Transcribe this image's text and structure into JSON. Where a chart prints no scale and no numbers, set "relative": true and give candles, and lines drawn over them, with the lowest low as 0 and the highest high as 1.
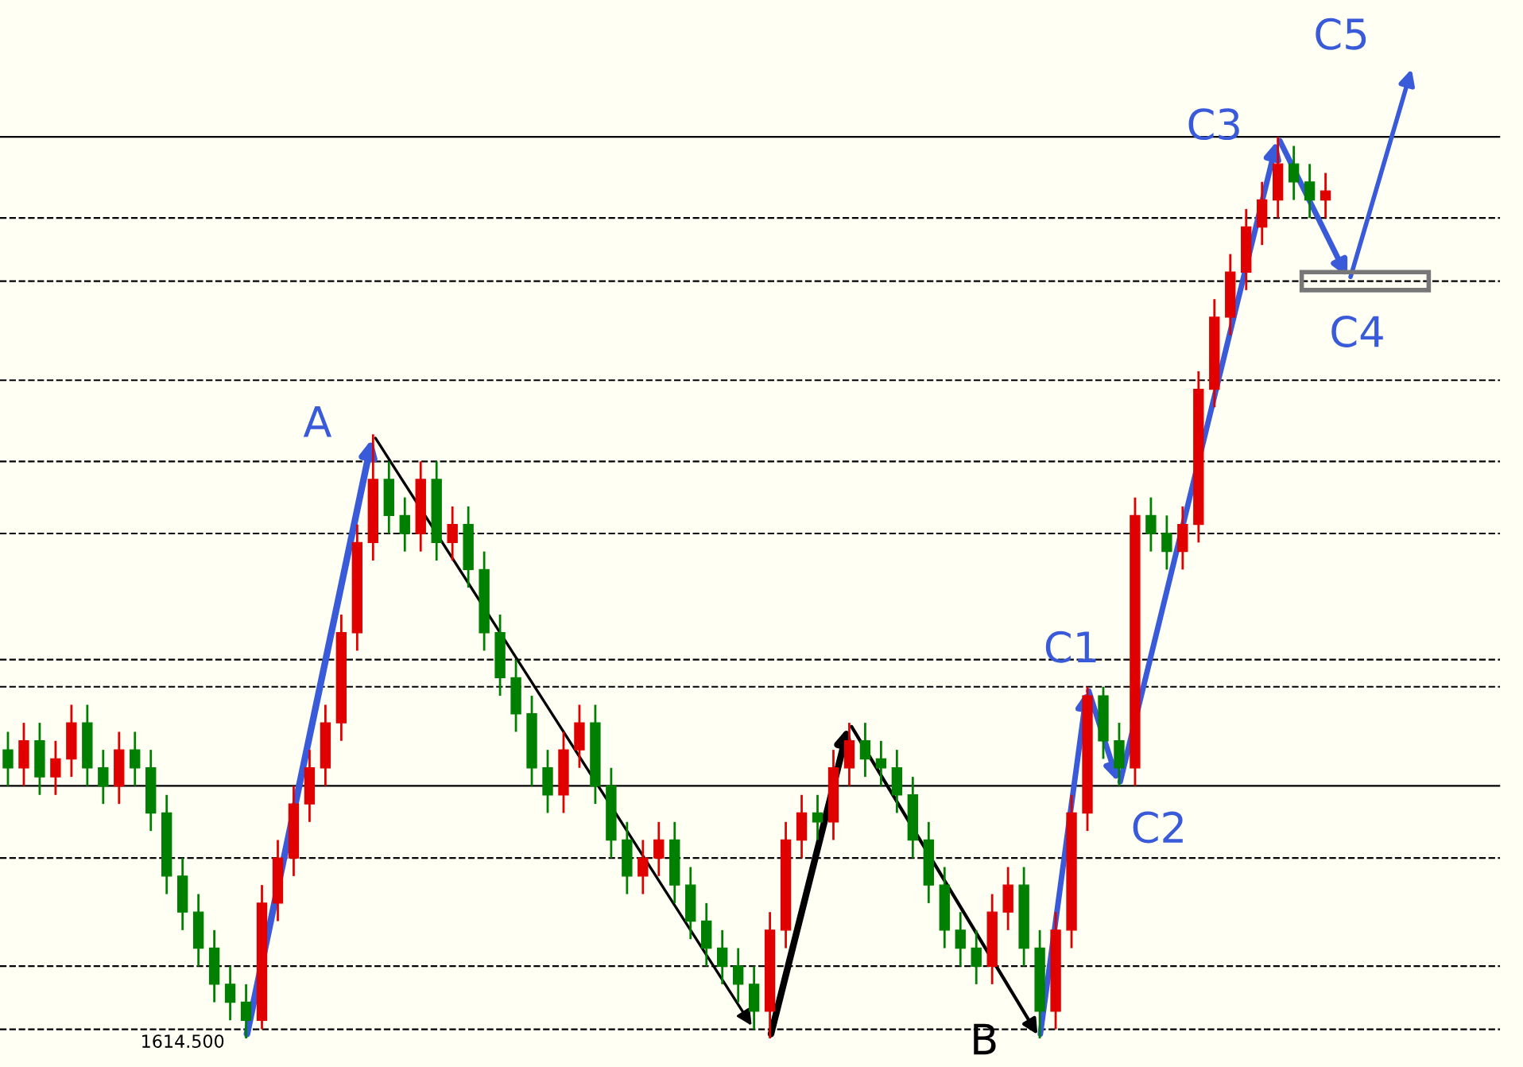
{
  "chart_data": {
    "type": "candlestick",
    "relative": true,
    "tick_labels": false,
    "categories": [
      null,
      null,
      null,
      null,
      null,
      null,
      null,
      null,
      null,
      null,
      null,
      null,
      null,
      null,
      null,
      null,
      null,
      null,
      null,
      null,
      null,
      null,
      null,
      null,
      null,
      null,
      null,
      null,
      null,
      null,
      null,
      null,
      null,
      null,
      null,
      null,
      null,
      null,
      null,
      null,
      null,
      null,
      null,
      null,
      null,
      null,
      null,
      null,
      null,
      null,
      null,
      null,
      null,
      null,
      null,
      null,
      null,
      null,
      null,
      null,
      null,
      null,
      null,
      null,
      null,
      null,
      null,
      null,
      null,
      null,
      null,
      null,
      null,
      null,
      null,
      null,
      null,
      null,
      null,
      null,
      null,
      null,
      null,
      null
    ],
    "ohlc": [
      [
        0.32,
        0.34,
        0.28,
        0.3
      ],
      [
        0.3,
        0.35,
        0.28,
        0.33
      ],
      [
        0.33,
        0.35,
        0.27,
        0.29
      ],
      [
        0.29,
        0.33,
        0.27,
        0.31
      ],
      [
        0.31,
        0.37,
        0.29,
        0.35
      ],
      [
        0.35,
        0.37,
        0.28,
        0.3
      ],
      [
        0.3,
        0.32,
        0.26,
        0.28
      ],
      [
        0.28,
        0.34,
        0.26,
        0.32
      ],
      [
        0.32,
        0.34,
        0.28,
        0.3
      ],
      [
        0.3,
        0.32,
        0.23,
        0.25
      ],
      [
        0.25,
        0.27,
        0.16,
        0.18
      ],
      [
        0.18,
        0.2,
        0.12,
        0.14
      ],
      [
        0.14,
        0.16,
        0.08,
        0.1
      ],
      [
        0.1,
        0.12,
        0.04,
        0.06
      ],
      [
        0.06,
        0.08,
        0.02,
        0.04
      ],
      [
        0.04,
        0.06,
        0.0,
        0.02
      ],
      [
        0.02,
        0.17,
        0.01,
        0.15
      ],
      [
        0.15,
        0.22,
        0.13,
        0.2
      ],
      [
        0.2,
        0.28,
        0.18,
        0.26
      ],
      [
        0.26,
        0.32,
        0.24,
        0.3
      ],
      [
        0.3,
        0.37,
        0.28,
        0.35
      ],
      [
        0.35,
        0.47,
        0.33,
        0.45
      ],
      [
        0.45,
        0.57,
        0.43,
        0.55
      ],
      [
        0.55,
        0.67,
        0.53,
        0.62
      ],
      [
        0.62,
        0.64,
        0.56,
        0.58
      ],
      [
        0.58,
        0.6,
        0.54,
        0.56
      ],
      [
        0.56,
        0.64,
        0.54,
        0.62
      ],
      [
        0.62,
        0.64,
        0.53,
        0.55
      ],
      [
        0.55,
        0.59,
        0.53,
        0.57
      ],
      [
        0.57,
        0.59,
        0.5,
        0.52
      ],
      [
        0.52,
        0.54,
        0.43,
        0.45
      ],
      [
        0.45,
        0.47,
        0.38,
        0.4
      ],
      [
        0.4,
        0.42,
        0.34,
        0.36
      ],
      [
        0.36,
        0.38,
        0.28,
        0.3
      ],
      [
        0.3,
        0.32,
        0.25,
        0.27
      ],
      [
        0.27,
        0.34,
        0.25,
        0.32
      ],
      [
        0.32,
        0.37,
        0.3,
        0.35
      ],
      [
        0.35,
        0.37,
        0.26,
        0.28
      ],
      [
        0.28,
        0.3,
        0.2,
        0.22
      ],
      [
        0.22,
        0.24,
        0.16,
        0.18
      ],
      [
        0.18,
        0.22,
        0.16,
        0.2
      ],
      [
        0.2,
        0.24,
        0.18,
        0.22
      ],
      [
        0.22,
        0.24,
        0.15,
        0.17
      ],
      [
        0.17,
        0.19,
        0.11,
        0.13
      ],
      [
        0.13,
        0.15,
        0.08,
        0.1
      ],
      [
        0.1,
        0.12,
        0.06,
        0.08
      ],
      [
        0.08,
        0.1,
        0.04,
        0.06
      ],
      [
        0.06,
        0.08,
        0.01,
        0.03
      ],
      [
        0.03,
        0.14,
        0.0,
        0.12
      ],
      [
        0.12,
        0.24,
        0.1,
        0.22
      ],
      [
        0.22,
        0.27,
        0.2,
        0.25
      ],
      [
        0.25,
        0.27,
        0.22,
        0.24
      ],
      [
        0.24,
        0.32,
        0.22,
        0.3
      ],
      [
        0.3,
        0.35,
        0.28,
        0.33
      ],
      [
        0.33,
        0.35,
        0.29,
        0.31
      ],
      [
        0.31,
        0.33,
        0.28,
        0.3
      ],
      [
        0.3,
        0.32,
        0.25,
        0.27
      ],
      [
        0.27,
        0.29,
        0.2,
        0.22
      ],
      [
        0.22,
        0.24,
        0.15,
        0.17
      ],
      [
        0.17,
        0.19,
        0.1,
        0.12
      ],
      [
        0.12,
        0.14,
        0.08,
        0.1
      ],
      [
        0.1,
        0.12,
        0.06,
        0.08
      ],
      [
        0.08,
        0.16,
        0.06,
        0.14
      ],
      [
        0.14,
        0.19,
        0.12,
        0.17
      ],
      [
        0.17,
        0.19,
        0.08,
        0.1
      ],
      [
        0.1,
        0.12,
        0.0,
        0.03
      ],
      [
        0.03,
        0.14,
        0.01,
        0.12
      ],
      [
        0.12,
        0.27,
        0.1,
        0.25
      ],
      [
        0.25,
        0.39,
        0.23,
        0.38
      ],
      [
        0.38,
        0.39,
        0.31,
        0.33
      ],
      [
        0.33,
        0.35,
        0.28,
        0.3
      ],
      [
        0.3,
        0.6,
        0.28,
        0.58
      ],
      [
        0.58,
        0.6,
        0.54,
        0.56
      ],
      [
        0.56,
        0.58,
        0.52,
        0.54
      ],
      [
        0.54,
        0.59,
        0.52,
        0.57
      ],
      [
        0.57,
        0.74,
        0.55,
        0.72
      ],
      [
        0.72,
        0.82,
        0.7,
        0.8
      ],
      [
        0.8,
        0.87,
        0.78,
        0.85
      ],
      [
        0.85,
        0.92,
        0.83,
        0.9
      ],
      [
        0.9,
        0.95,
        0.88,
        0.93
      ],
      [
        0.93,
        1.0,
        0.91,
        0.97
      ],
      [
        0.97,
        0.99,
        0.93,
        0.95
      ],
      [
        0.95,
        0.97,
        0.91,
        0.93
      ],
      [
        0.93,
        0.96,
        0.91,
        0.94
      ]
    ],
    "ref_lines": [
      {
        "axis": "y",
        "value": 1.0,
        "color": "#000000",
        "line_style": "solid"
      },
      {
        "axis": "y",
        "value": 0.28,
        "color": "#000000",
        "line_style": "solid"
      },
      {
        "axis": "y",
        "value": 0.91,
        "color": "#000000",
        "line_style": "dashed"
      },
      {
        "axis": "y",
        "value": 0.84,
        "color": "#000000",
        "line_style": "dashed"
      },
      {
        "axis": "y",
        "value": 0.73,
        "color": "#000000",
        "line_style": "dashed"
      },
      {
        "axis": "y",
        "value": 0.64,
        "color": "#000000",
        "line_style": "dashed"
      },
      {
        "axis": "y",
        "value": 0.56,
        "color": "#000000",
        "line_style": "dashed"
      },
      {
        "axis": "y",
        "value": 0.42,
        "color": "#000000",
        "line_style": "dashed"
      },
      {
        "axis": "y",
        "value": 0.39,
        "color": "#000000",
        "line_style": "dashed"
      },
      {
        "axis": "y",
        "value": 0.2,
        "color": "#000000",
        "line_style": "dashed"
      },
      {
        "axis": "y",
        "value": 0.08,
        "color": "#000000",
        "line_style": "dashed"
      },
      {
        "axis": "y",
        "value": 0.01,
        "color": "#000000",
        "line_style": "dashed"
      }
    ],
    "annotations": [
      "A",
      "B",
      "C1",
      "C2",
      "C3",
      "C4",
      "C5",
      "1614.500"
    ]
  }
}
